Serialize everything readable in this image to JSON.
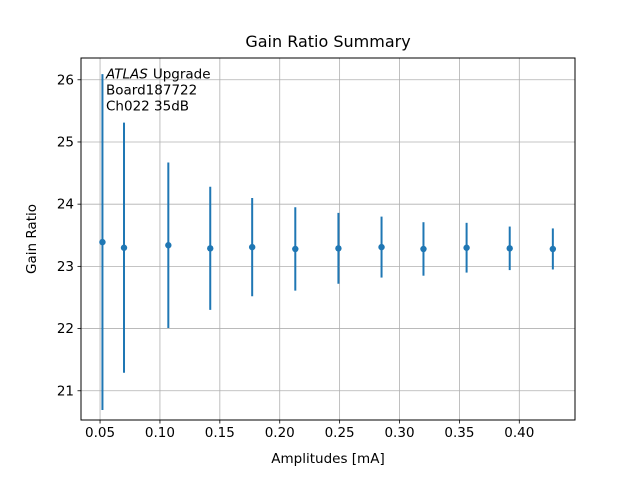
{
  "chart_data": {
    "type": "scatter",
    "title": "Gain Ratio Summary",
    "xlabel": "Amplitudes [mA]",
    "ylabel": "Gain Ratio",
    "xlim": [
      0.0341,
      0.4465
    ],
    "ylim": [
      20.53,
      26.35
    ],
    "xticks": [
      0.05,
      0.1,
      0.15,
      0.2,
      0.25,
      0.3,
      0.35,
      0.4
    ],
    "xtick_labels": [
      "0.05",
      "0.10",
      "0.15",
      "0.20",
      "0.25",
      "0.30",
      "0.35",
      "0.40"
    ],
    "yticks": [
      21,
      22,
      23,
      24,
      25,
      26
    ],
    "ytick_labels": [
      "21",
      "22",
      "23",
      "24",
      "25",
      "26"
    ],
    "grid": true,
    "grid_color": "#b0b0b0",
    "spine_color": "#000000",
    "annotation": {
      "line1_italic": "ATLAS",
      "line1_rest": "Upgrade",
      "line2": "Board187722",
      "line3": "Ch022 35dB"
    },
    "series": [
      {
        "name": "gain-ratio-errorbar-series",
        "color": "#1f77b4",
        "marker": "point",
        "x": [
          0.052,
          0.07,
          0.107,
          0.142,
          0.177,
          0.213,
          0.249,
          0.285,
          0.32,
          0.356,
          0.392,
          0.428
        ],
        "y": [
          23.39,
          23.3,
          23.34,
          23.29,
          23.31,
          23.28,
          23.29,
          23.31,
          23.28,
          23.3,
          23.29,
          23.28
        ],
        "yerr": [
          2.7,
          2.01,
          1.33,
          0.99,
          0.79,
          0.67,
          0.57,
          0.49,
          0.43,
          0.4,
          0.35,
          0.33
        ]
      }
    ]
  }
}
